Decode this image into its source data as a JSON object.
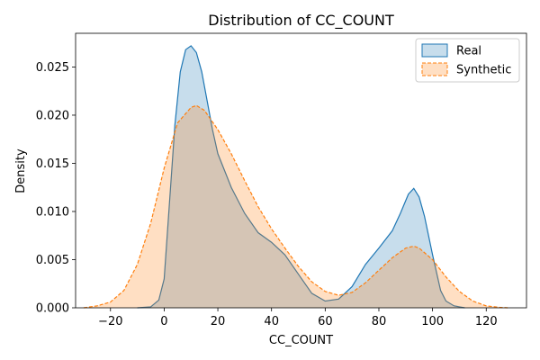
{
  "chart_data": {
    "type": "area",
    "title": "Distribution of CC_COUNT",
    "xlabel": "CC_COUNT",
    "ylabel": "Density",
    "xlim": [
      -33,
      135
    ],
    "ylim": [
      0,
      0.0285
    ],
    "xticks": [
      -20,
      0,
      20,
      40,
      60,
      80,
      100,
      120
    ],
    "xtick_labels": [
      "−20",
      "0",
      "20",
      "40",
      "60",
      "80",
      "100",
      "120"
    ],
    "yticks": [
      0.0,
      0.005,
      0.01,
      0.015,
      0.02,
      0.025
    ],
    "ytick_labels": [
      "0.000",
      "0.005",
      "0.010",
      "0.015",
      "0.020",
      "0.025"
    ],
    "grid": false,
    "legend_position": "top-right",
    "series": [
      {
        "name": "Real",
        "line_color": "#1f77b4",
        "fill_color": "#1f77b4",
        "line_style": "solid",
        "x": [
          -10,
          -5,
          -2,
          0,
          2,
          4,
          6,
          8,
          10,
          12,
          14,
          16,
          18,
          20,
          25,
          30,
          35,
          40,
          45,
          50,
          55,
          60,
          65,
          70,
          75,
          80,
          85,
          88,
          91,
          93,
          95,
          97,
          100,
          103,
          105,
          108,
          110,
          112
        ],
        "y": [
          0,
          0.0001,
          0.0008,
          0.003,
          0.011,
          0.019,
          0.0245,
          0.0268,
          0.0272,
          0.0265,
          0.0245,
          0.0215,
          0.0185,
          0.016,
          0.0125,
          0.0098,
          0.0078,
          0.0068,
          0.0055,
          0.0035,
          0.0015,
          0.0007,
          0.0009,
          0.0022,
          0.0045,
          0.0062,
          0.008,
          0.0098,
          0.0118,
          0.0124,
          0.0115,
          0.0095,
          0.0055,
          0.0018,
          0.0007,
          0.0002,
          0.0001,
          0
        ]
      },
      {
        "name": "Synthetic",
        "line_color": "#ff7f0e",
        "fill_color": "#ff7f0e",
        "line_style": "dashed",
        "x": [
          -30,
          -25,
          -20,
          -15,
          -10,
          -5,
          0,
          5,
          10,
          12,
          15,
          20,
          25,
          30,
          35,
          40,
          45,
          50,
          55,
          60,
          65,
          70,
          75,
          80,
          85,
          90,
          93,
          95,
          100,
          105,
          110,
          115,
          120,
          125,
          128
        ],
        "y": [
          0,
          0.0002,
          0.0006,
          0.0018,
          0.0045,
          0.0088,
          0.0145,
          0.0192,
          0.0208,
          0.021,
          0.0205,
          0.0185,
          0.016,
          0.0132,
          0.0105,
          0.0082,
          0.0062,
          0.0043,
          0.0027,
          0.0017,
          0.0013,
          0.0016,
          0.0026,
          0.0039,
          0.0052,
          0.0062,
          0.0064,
          0.0062,
          0.005,
          0.0032,
          0.0017,
          0.0007,
          0.0002,
          5e-05,
          0
        ]
      }
    ]
  }
}
